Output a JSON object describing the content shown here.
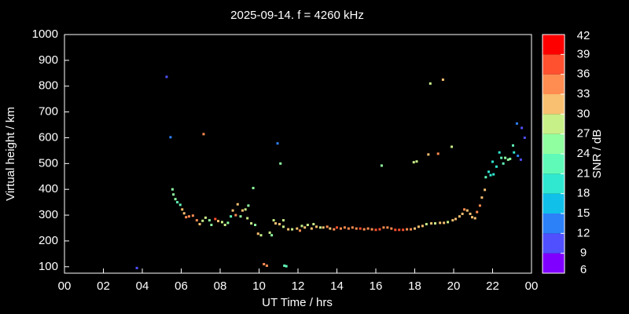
{
  "chart_data": {
    "type": "scatter",
    "title": "2025-09-14. f = 4260 kHz",
    "x_label": "UT Time / hrs",
    "y_label": "Virtual height / km",
    "colorbar_label": "SNR / dB",
    "xlim": [
      0,
      24
    ],
    "xticks": [
      {
        "value": 0,
        "label": "00"
      },
      {
        "value": 2,
        "label": "02"
      },
      {
        "value": 4,
        "label": "04"
      },
      {
        "value": 6,
        "label": "06"
      },
      {
        "value": 8,
        "label": "08"
      },
      10,
      12,
      14,
      16,
      18,
      20,
      22,
      {
        "value": 24,
        "label": "00"
      }
    ],
    "ylim": [
      75,
      1000
    ],
    "yticks": [
      100,
      200,
      300,
      400,
      500,
      600,
      700,
      800,
      900,
      1000
    ],
    "clim": [
      6,
      42
    ],
    "cticks": [
      6,
      9,
      12,
      15,
      18,
      21,
      24,
      27,
      30,
      33,
      36,
      39,
      42
    ],
    "colorscale": [
      "#8000ff",
      "#5050ff",
      "#2c80f8",
      "#10c0e8",
      "#30e8d0",
      "#60fab8",
      "#90ffa0",
      "#c8f088",
      "#f8c070",
      "#ff8c50",
      "#ff5030",
      "#ff0000"
    ],
    "x": [
      3.72,
      5.25,
      5.45,
      7.15,
      5.55,
      5.6,
      5.7,
      5.8,
      5.95,
      6.05,
      6.15,
      6.25,
      6.4,
      6.6,
      6.8,
      6.95,
      7.1,
      7.25,
      7.45,
      7.55,
      7.75,
      7.9,
      8.1,
      8.25,
      8.4,
      8.55,
      8.65,
      8.8,
      8.9,
      9.05,
      9.15,
      9.3,
      9.4,
      9.45,
      9.6,
      9.7,
      9.8,
      9.95,
      10.1,
      10.25,
      10.4,
      10.55,
      10.65,
      10.75,
      10.85,
      10.95,
      11.05,
      11.1,
      11.25,
      11.3,
      11.4,
      11.25,
      11.5,
      11.7,
      11.95,
      12.1,
      12.2,
      12.35,
      12.5,
      12.7,
      12.8,
      12.95,
      13.15,
      13.3,
      13.5,
      13.65,
      13.85,
      14.0,
      14.2,
      14.4,
      14.6,
      14.8,
      15.0,
      15.2,
      15.4,
      15.6,
      15.8,
      16.0,
      16.2,
      16.3,
      16.4,
      16.6,
      16.8,
      17.0,
      17.2,
      17.4,
      17.6,
      17.8,
      17.95,
      18.1,
      18.0,
      18.2,
      18.4,
      18.6,
      18.7,
      18.8,
      18.85,
      19.05,
      19.2,
      19.45,
      19.3,
      19.5,
      19.7,
      19.9,
      19.95,
      20.1,
      20.3,
      20.45,
      20.55,
      20.7,
      20.85,
      20.95,
      21.1,
      21.2,
      21.35,
      21.45,
      21.6,
      21.65,
      21.8,
      21.9,
      22.0,
      22.05,
      22.2,
      22.35,
      22.45,
      22.55,
      22.65,
      22.8,
      22.9,
      23.05,
      23.1,
      23.25,
      23.3,
      23.45,
      23.5,
      23.65
    ],
    "y": [
      95,
      836,
      602,
      614,
      400,
      380,
      362,
      350,
      340,
      322,
      307,
      292,
      295,
      298,
      280,
      265,
      278,
      290,
      280,
      262,
      285,
      277,
      273,
      262,
      270,
      295,
      318,
      300,
      342,
      295,
      318,
      322,
      288,
      337,
      268,
      405,
      262,
      228,
      222,
      110,
      104,
      232,
      222,
      280,
      268,
      578,
      265,
      500,
      255,
      104,
      102,
      280,
      245,
      245,
      248,
      240,
      258,
      252,
      262,
      248,
      265,
      255,
      252,
      252,
      255,
      248,
      245,
      252,
      248,
      252,
      248,
      252,
      248,
      248,
      245,
      248,
      245,
      243,
      245,
      492,
      252,
      252,
      248,
      243,
      243,
      243,
      245,
      245,
      505,
      508,
      248,
      255,
      258,
      265,
      535,
      810,
      268,
      268,
      538,
      825,
      270,
      270,
      273,
      565,
      280,
      285,
      295,
      305,
      322,
      318,
      305,
      292,
      288,
      312,
      337,
      368,
      398,
      447,
      468,
      455,
      507,
      458,
      488,
      543,
      522,
      500,
      522,
      515,
      518,
      570,
      543,
      655,
      530,
      515,
      638,
      600
    ],
    "snr": [
      10,
      11,
      12,
      35,
      25,
      25,
      24,
      23,
      22,
      30,
      32,
      35,
      34,
      33,
      34,
      32,
      28,
      27,
      26,
      25,
      37,
      30,
      29,
      28,
      26,
      23,
      30,
      33,
      30,
      26,
      30,
      28,
      29,
      25,
      27,
      24,
      26,
      30,
      28,
      34,
      33,
      27,
      26,
      29,
      30,
      13,
      30,
      26,
      27,
      22,
      22,
      27,
      30,
      29,
      30,
      33,
      27,
      30,
      28,
      30,
      29,
      31,
      29,
      32,
      33,
      32,
      34,
      38,
      34,
      35,
      33,
      35,
      34,
      36,
      34,
      33,
      35,
      36,
      38,
      25,
      34,
      33,
      35,
      37,
      38,
      36,
      35,
      33,
      29,
      28,
      32,
      31,
      30,
      29,
      31,
      29,
      30,
      29,
      33,
      32,
      31,
      30,
      29,
      28,
      30,
      31,
      30,
      31,
      33,
      32,
      30,
      31,
      32,
      33,
      33,
      31,
      30,
      21,
      20,
      20,
      18,
      19,
      20,
      20,
      22,
      21,
      24,
      25,
      24,
      22,
      19,
      12,
      14,
      9,
      11,
      10
    ]
  }
}
